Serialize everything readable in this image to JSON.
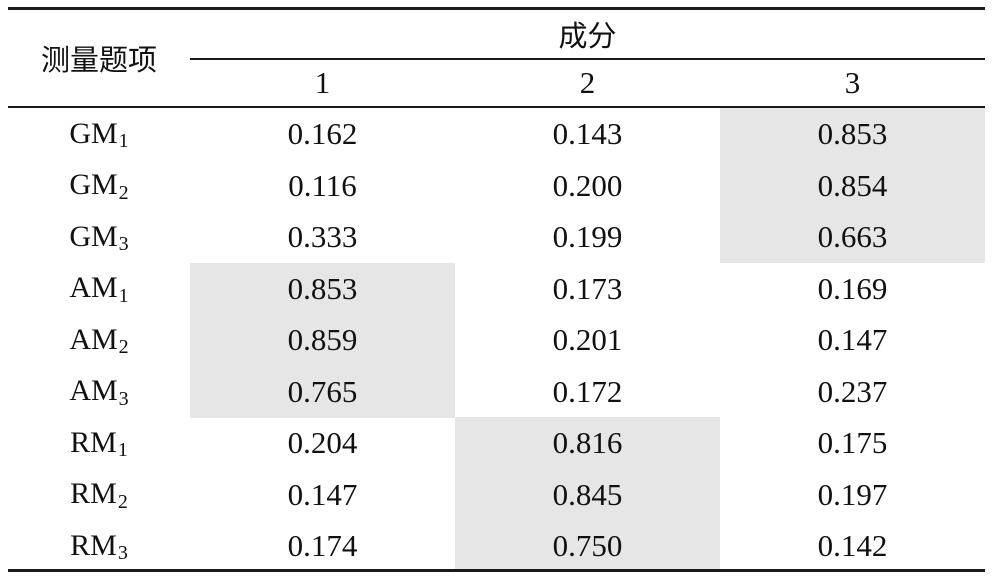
{
  "table": {
    "row_header": "测量题项",
    "group_header": "成分",
    "columns": [
      "1",
      "2",
      "3"
    ],
    "rows": [
      {
        "item": "GM",
        "sub": "1",
        "values": [
          "0.162",
          "0.143",
          "0.853"
        ],
        "highlight": 2
      },
      {
        "item": "GM",
        "sub": "2",
        "values": [
          "0.116",
          "0.200",
          "0.854"
        ],
        "highlight": 2
      },
      {
        "item": "GM",
        "sub": "3",
        "values": [
          "0.333",
          "0.199",
          "0.663"
        ],
        "highlight": 2
      },
      {
        "item": "AM",
        "sub": "1",
        "values": [
          "0.853",
          "0.173",
          "0.169"
        ],
        "highlight": 0
      },
      {
        "item": "AM",
        "sub": "2",
        "values": [
          "0.859",
          "0.201",
          "0.147"
        ],
        "highlight": 0
      },
      {
        "item": "AM",
        "sub": "3",
        "values": [
          "0.765",
          "0.172",
          "0.237"
        ],
        "highlight": 0
      },
      {
        "item": "RM",
        "sub": "1",
        "values": [
          "0.204",
          "0.816",
          "0.175"
        ],
        "highlight": 1
      },
      {
        "item": "RM",
        "sub": "2",
        "values": [
          "0.147",
          "0.845",
          "0.197"
        ],
        "highlight": 1
      },
      {
        "item": "RM",
        "sub": "3",
        "values": [
          "0.174",
          "0.750",
          "0.142"
        ],
        "highlight": 1
      }
    ],
    "highlight_color": "#e6e6e6"
  }
}
